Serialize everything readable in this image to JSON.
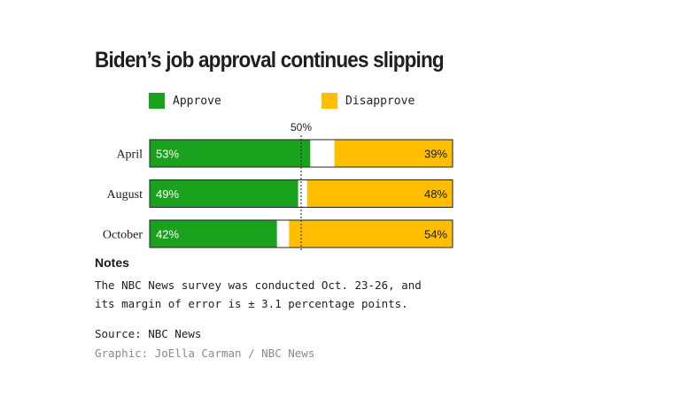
{
  "title": "Biden’s job approval continues slipping",
  "colors": {
    "approve": "#1aa11e",
    "disapprove": "#ffbf00",
    "border": "#222222"
  },
  "chart_data": {
    "type": "bar",
    "orientation": "horizontal-stacked",
    "categories": [
      "April",
      "August",
      "October"
    ],
    "series": [
      {
        "name": "Approve",
        "values": [
          53,
          49,
          42
        ]
      },
      {
        "name": "Disapprove",
        "values": [
          39,
          48,
          54
        ]
      }
    ],
    "reference_line": {
      "value": 50,
      "label": "50%"
    },
    "xlim": [
      0,
      100
    ],
    "value_suffix": "%",
    "legend": "top-left"
  },
  "notes": {
    "heading": "Notes",
    "lines": [
      "The NBC News survey was conducted Oct. 23-26, and",
      "its margin of error is ± 3.1 percentage points."
    ]
  },
  "source": "Source: NBC News",
  "credit": "Graphic: JoElla Carman / NBC News"
}
